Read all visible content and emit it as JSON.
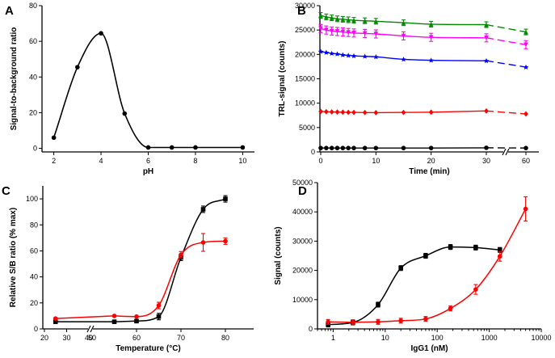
{
  "chart_data": [
    {
      "panel": "A",
      "type": "line",
      "xlabel": "pH",
      "ylabel": "Signal-to-background ratio",
      "xlim": [
        1.5,
        10.5
      ],
      "ylim": [
        -2,
        80
      ],
      "xticks": [
        2,
        4,
        6,
        8,
        10
      ],
      "yticks": [
        0,
        20,
        40,
        60,
        80
      ],
      "series": [
        {
          "name": "S/B",
          "color": "#000000",
          "marker": "circle",
          "x": [
            2,
            3,
            4,
            5,
            6,
            7,
            8,
            10
          ],
          "y": [
            6,
            45.5,
            64.5,
            19.5,
            0.5,
            0.5,
            0.5,
            0.5
          ]
        }
      ]
    },
    {
      "panel": "B",
      "type": "line",
      "xlabel": "Time (min)",
      "ylabel": "TRL-signal (counts)",
      "ylim": [
        0,
        30000
      ],
      "xticks": [
        0,
        10,
        20,
        30,
        60
      ],
      "yticks": [
        0,
        5000,
        10000,
        15000,
        20000,
        25000,
        30000
      ],
      "axis_break": "between 30 and 60",
      "x": [
        0,
        1,
        2,
        3,
        4,
        5,
        6,
        8,
        10,
        15,
        20,
        30,
        60
      ],
      "series": [
        {
          "name": "green",
          "color": "#008a00",
          "marker": "triangle",
          "values": [
            28000,
            27700,
            27500,
            27300,
            27200,
            27100,
            27000,
            26900,
            26800,
            26500,
            26200,
            26100,
            24600
          ]
        },
        {
          "name": "magenta",
          "color": "#ff00ff",
          "marker": "triangle-down",
          "values": [
            25300,
            25000,
            24800,
            24700,
            24600,
            24500,
            24400,
            24300,
            24200,
            23800,
            23500,
            23400,
            22000
          ]
        },
        {
          "name": "blue",
          "color": "#0000ff",
          "marker": "star",
          "values": [
            20600,
            20400,
            20200,
            20100,
            19900,
            19800,
            19700,
            19600,
            19500,
            19000,
            18800,
            18700,
            17400
          ]
        },
        {
          "name": "red",
          "color": "#ff0000",
          "marker": "diamond",
          "values": [
            8300,
            8250,
            8200,
            8180,
            8150,
            8120,
            8100,
            8080,
            8050,
            8100,
            8150,
            8400,
            7800
          ]
        },
        {
          "name": "black",
          "color": "#000000",
          "marker": "circle",
          "values": [
            800,
            800,
            800,
            800,
            800,
            800,
            800,
            800,
            800,
            800,
            800,
            850,
            800
          ]
        }
      ]
    },
    {
      "panel": "C",
      "type": "line",
      "xlabel": "Temperature (°C)",
      "ylabel": "Relative S/B ratio (% max)",
      "ylim": [
        0,
        110
      ],
      "xticks": [
        20,
        30,
        40,
        50,
        60,
        70,
        80
      ],
      "yticks": [
        0,
        20,
        40,
        60,
        80,
        100
      ],
      "axis_break": "between 40 and 50",
      "series": [
        {
          "name": "black",
          "color": "#000000",
          "marker": "square",
          "x": [
            25,
            55,
            60,
            65,
            70,
            75,
            80
          ],
          "y": [
            5.5,
            5.5,
            6,
            9.5,
            55,
            92,
            100
          ]
        },
        {
          "name": "red",
          "color": "#ff0000",
          "marker": "circle",
          "x": [
            25,
            55,
            60,
            65,
            70,
            75,
            80
          ],
          "y": [
            8,
            10,
            9.5,
            18,
            57,
            66.5,
            67.5
          ]
        }
      ]
    },
    {
      "panel": "D",
      "type": "line",
      "xlabel": "IgG1 (nM)",
      "ylabel": "Signal (counts)",
      "xscale": "log",
      "xlim": [
        0.5,
        10000
      ],
      "ylim": [
        0,
        50000
      ],
      "xticks": [
        1,
        10,
        100,
        1000,
        10000
      ],
      "yticks": [
        0,
        10000,
        20000,
        30000,
        40000,
        50000
      ],
      "series": [
        {
          "name": "black",
          "color": "#000000",
          "marker": "square",
          "x": [
            0.8,
            2.4,
            7.3,
            20,
            60,
            180,
            550,
            1600
          ],
          "y": [
            1500,
            2200,
            8300,
            20800,
            25000,
            28000,
            27800,
            27000
          ]
        },
        {
          "name": "red",
          "color": "#ff0000",
          "marker": "circle",
          "x": [
            0.8,
            2.4,
            7.3,
            20,
            60,
            180,
            550,
            1600,
            5000
          ],
          "y": [
            2400,
            2300,
            2400,
            2800,
            3400,
            7000,
            13500,
            24800,
            41000
          ]
        }
      ]
    }
  ]
}
